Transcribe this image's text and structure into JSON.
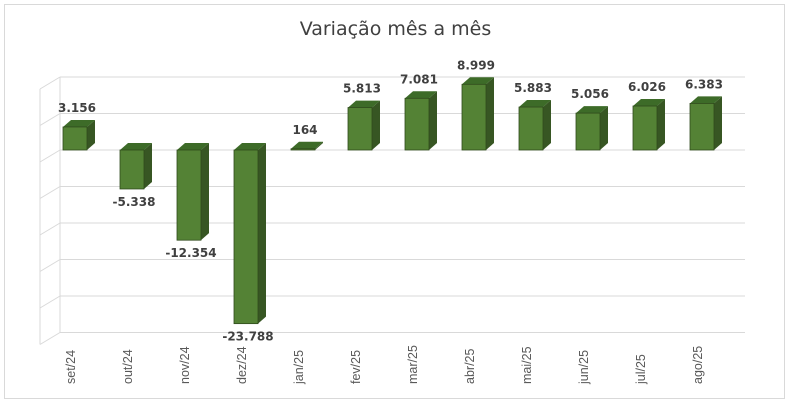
{
  "chart_data": {
    "type": "bar",
    "title": "Variação mês a mês",
    "xlabel": "",
    "ylabel": "",
    "categories": [
      "set/24",
      "out/24",
      "nov/24",
      "dez/24",
      "jan/25",
      "fev/25",
      "mar/25",
      "abr/25",
      "mai/25",
      "jun/25",
      "jul/25",
      "ago/25"
    ],
    "values": [
      3156,
      -5338,
      -12354,
      -23788,
      164,
      5813,
      7081,
      8999,
      5883,
      5056,
      6026,
      6383
    ],
    "data_labels": [
      "3.156",
      "-5.338",
      "-12.354",
      "-23.788",
      "164",
      "5.813",
      "7.081",
      "8.999",
      "5.883",
      "5.056",
      "6.026",
      "6.383"
    ],
    "ylim": [
      -25000,
      10000
    ],
    "style": "3d-column",
    "gridlines": true,
    "legend": "none",
    "colors": {
      "bar_front": "#548235",
      "bar_side": "#375623",
      "bar_top": "#3d6b28",
      "gridline": "#d9d9d9",
      "text": "#404040"
    }
  }
}
